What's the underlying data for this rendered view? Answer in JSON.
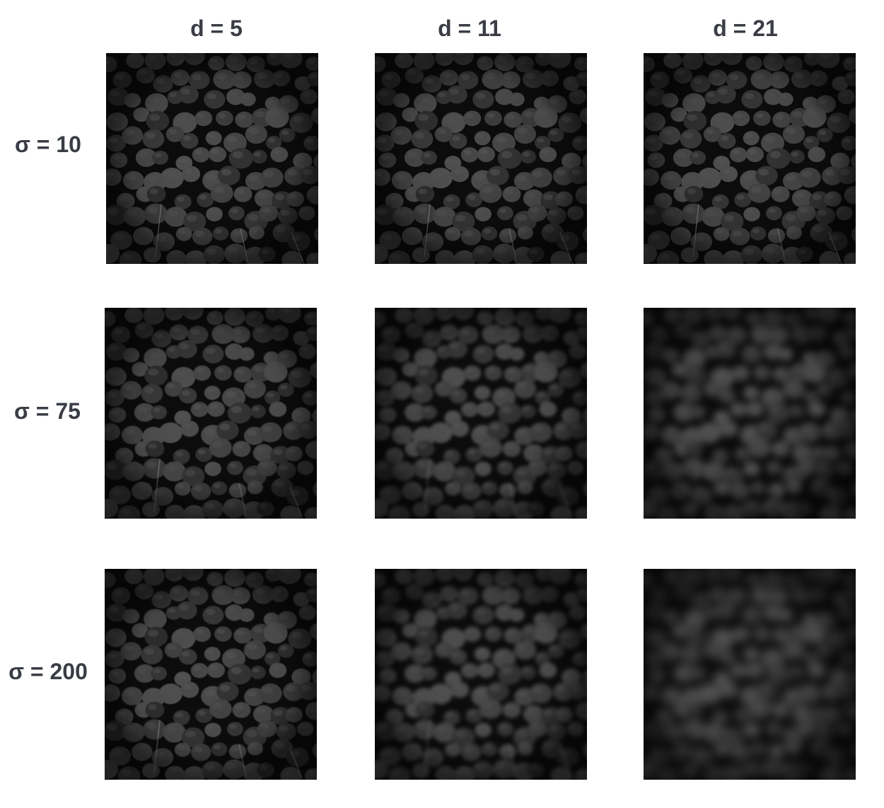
{
  "grid": {
    "column_labels": [
      "d = 5",
      "d = 11",
      "d = 21"
    ],
    "row_labels": [
      "σ = 10",
      "σ = 75",
      "σ = 200"
    ],
    "rows": [
      {
        "sigma_label": "σ = 10",
        "cells": [
          {
            "d_label": "d = 5",
            "content": "textured-surface",
            "blur": "none"
          },
          {
            "d_label": "d = 11",
            "content": "textured-surface",
            "blur": "none"
          },
          {
            "d_label": "d = 21",
            "content": "textured-surface",
            "blur": "none"
          }
        ]
      },
      {
        "sigma_label": "σ = 75",
        "cells": [
          {
            "d_label": "d = 5",
            "content": "textured-surface",
            "blur": "slight"
          },
          {
            "d_label": "d = 11",
            "content": "textured-surface",
            "blur": "moderate"
          },
          {
            "d_label": "d = 21",
            "content": "textured-surface",
            "blur": "strong"
          }
        ]
      },
      {
        "sigma_label": "σ = 200",
        "cells": [
          {
            "d_label": "d = 5",
            "content": "textured-surface",
            "blur": "slight"
          },
          {
            "d_label": "d = 11",
            "content": "textured-surface",
            "blur": "moderate"
          },
          {
            "d_label": "d = 21",
            "content": "textured-surface",
            "blur": "very strong"
          }
        ]
      }
    ]
  },
  "colors": {
    "label_text": "#3a3d45",
    "tile_base": "#1b1b1b",
    "cell_highlight": "#5a5a5a",
    "crack_dark": "#0d0d0d"
  }
}
